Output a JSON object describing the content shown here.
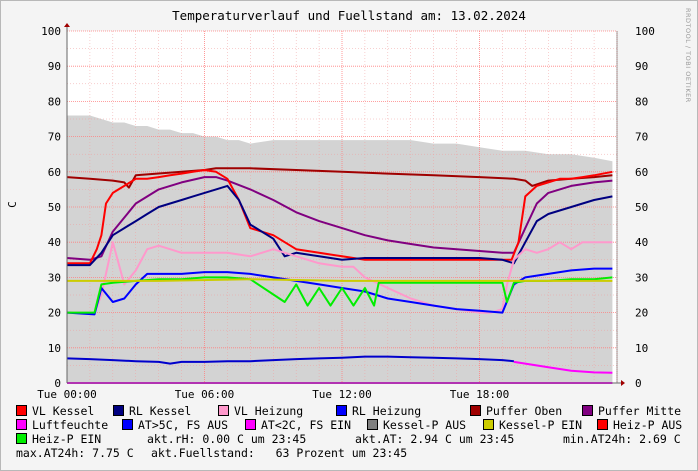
{
  "chart_data": {
    "type": "line",
    "title": "Temperaturverlauf und Fuellstand am: 13.02.2024",
    "watermark": "RRDTOOL / TOBI OETIKER",
    "ylabel": "C",
    "ylim": [
      0,
      100
    ],
    "y_ticks": [
      0,
      10,
      20,
      30,
      40,
      50,
      60,
      70,
      80,
      90,
      100
    ],
    "xlim_hours": [
      0,
      24
    ],
    "x_ticks": [
      {
        "hour": 0,
        "label": "Tue 00:00"
      },
      {
        "hour": 6,
        "label": "Tue 06:00"
      },
      {
        "hour": 12,
        "label": "Tue 12:00"
      },
      {
        "hour": 18,
        "label": "Tue 18:00"
      }
    ],
    "grid": true,
    "area": {
      "name": "Fuellstand",
      "color": "#d3d3d3",
      "x": [
        0,
        0.5,
        1.0,
        1.5,
        2.0,
        2.5,
        3.0,
        3.5,
        4.0,
        4.5,
        5.0,
        5.5,
        6.0,
        6.5,
        7.0,
        7.5,
        8.0,
        9.0,
        10.0,
        11.0,
        12.0,
        13.0,
        14.0,
        15.0,
        16.0,
        17.0,
        18.0,
        19.0,
        20.0,
        21.0,
        22.0,
        23.0,
        23.8
      ],
      "values": [
        76,
        76,
        76,
        75,
        74,
        74,
        73,
        73,
        72,
        72,
        71,
        71,
        70,
        70,
        69,
        69,
        68,
        69,
        69,
        69,
        69,
        69,
        69,
        69,
        68,
        68,
        67,
        66,
        66,
        65,
        65,
        64,
        63
      ]
    },
    "series": [
      {
        "name": "Puffer Oben",
        "color": "#a00000",
        "width": 2,
        "x": [
          0,
          1.0,
          2.0,
          2.5,
          2.7,
          3.0,
          5.0,
          6.0,
          6.5,
          8.0,
          10.0,
          12.0,
          14.0,
          16.0,
          18.0,
          19.5,
          20.0,
          20.3,
          21.0,
          22.0,
          23.0,
          23.8
        ],
        "values": [
          58.5,
          58,
          57.5,
          57,
          55.5,
          59,
          60,
          60.5,
          61,
          61,
          60.5,
          60,
          59.5,
          59,
          58.5,
          58,
          57.5,
          56,
          57.5,
          58,
          58.5,
          59
        ]
      },
      {
        "name": "Puffer Mitte",
        "color": "#800080",
        "width": 2,
        "x": [
          0,
          1.0,
          1.5,
          2.0,
          3.0,
          4.0,
          5.0,
          6.0,
          6.5,
          7.0,
          8.0,
          9.0,
          10.0,
          11.0,
          12.0,
          13.0,
          14.0,
          15.0,
          16.0,
          17.0,
          18.0,
          19.0,
          19.5,
          20.0,
          20.5,
          21.0,
          22.0,
          23.0,
          23.8
        ],
        "values": [
          35.5,
          35,
          36,
          43,
          51,
          55,
          57,
          58.5,
          58.5,
          57.5,
          55,
          52,
          48.5,
          46,
          44,
          42,
          40.5,
          39.5,
          38.5,
          38,
          37.5,
          37,
          37,
          44,
          51,
          54,
          56,
          57,
          57.5
        ]
      },
      {
        "name": "VL Kessel",
        "color": "#ff0000",
        "width": 2,
        "x": [
          0,
          1.0,
          1.3,
          1.5,
          1.7,
          2.0,
          2.5,
          3.0,
          3.5,
          4.0,
          4.5,
          5.0,
          5.5,
          6.0,
          6.5,
          7.0,
          7.5,
          8.0,
          9.0,
          10.0,
          11.0,
          12.0,
          13.0,
          14.0,
          15.0,
          16.0,
          17.0,
          18.0,
          19.0,
          19.4,
          19.7,
          20.0,
          20.5,
          21.0,
          21.5,
          22.0,
          22.5,
          23.0,
          23.8
        ],
        "values": [
          34,
          34,
          38,
          42,
          51,
          54,
          56,
          58,
          58,
          58.5,
          59,
          59.5,
          60,
          60.5,
          60,
          58,
          52,
          44,
          42,
          38,
          37,
          36,
          35,
          35,
          35,
          35,
          35,
          35,
          35,
          35,
          40,
          53,
          56,
          57,
          58,
          58,
          58.5,
          59,
          60
        ]
      },
      {
        "name": "RL Kessel",
        "color": "#000080",
        "width": 2,
        "x": [
          0,
          1.0,
          1.5,
          2.0,
          2.5,
          3.0,
          3.5,
          4.0,
          4.5,
          5.0,
          5.5,
          6.0,
          6.5,
          7.0,
          7.5,
          8.0,
          8.5,
          9.0,
          9.5,
          10.0,
          11.0,
          12.0,
          13.0,
          14.0,
          15.0,
          16.0,
          17.0,
          18.0,
          19.0,
          19.5,
          20.0,
          20.5,
          21.0,
          21.5,
          22.0,
          22.5,
          23.0,
          23.8
        ],
        "values": [
          33.5,
          33.5,
          37,
          42,
          44,
          46,
          48,
          50,
          51,
          52,
          53,
          54,
          55,
          56,
          52,
          45,
          43,
          41,
          36,
          37,
          36,
          35,
          35.5,
          35.5,
          35.5,
          35.5,
          35.5,
          35.5,
          35,
          34,
          40,
          46,
          48,
          49,
          50,
          51,
          52,
          53
        ]
      },
      {
        "name": "VL Heizung",
        "color": "#ff99cc",
        "width": 2,
        "x": [
          0,
          1.2,
          1.5,
          2.0,
          2.5,
          3.0,
          3.5,
          4.0,
          4.5,
          5.0,
          6.0,
          7.0,
          8.0,
          8.5,
          9.0,
          10.0,
          11.0,
          12.0,
          12.5,
          13.0,
          14.0,
          15.0,
          16.0,
          17.0,
          18.0,
          18.5,
          19.0,
          19.2,
          19.5,
          20.0,
          20.5,
          21.0,
          21.5,
          22.0,
          22.5,
          23.0,
          23.8
        ],
        "values": [
          20,
          20,
          25,
          40,
          28,
          32,
          38,
          39,
          38,
          37,
          37,
          37,
          36,
          37,
          38,
          36,
          34,
          33,
          33,
          30,
          27,
          24,
          22,
          21,
          20,
          20,
          21,
          28,
          35,
          38,
          37,
          38,
          40,
          38,
          40,
          40,
          40
        ]
      },
      {
        "name": "RL Heizung",
        "color": "#0000ff",
        "width": 2,
        "x": [
          0,
          1.2,
          1.5,
          2.0,
          2.5,
          3.0,
          3.5,
          4.0,
          5.0,
          6.0,
          7.0,
          8.0,
          9.0,
          10.0,
          11.0,
          12.0,
          13.0,
          14.0,
          15.0,
          16.0,
          17.0,
          18.0,
          19.0,
          19.5,
          20.0,
          21.0,
          22.0,
          23.0,
          23.8
        ],
        "values": [
          20,
          19.5,
          27,
          23,
          24,
          28,
          31,
          31,
          31,
          31.5,
          31.5,
          31,
          30,
          29,
          28,
          27,
          26,
          24,
          23,
          22,
          21,
          20.5,
          20,
          28,
          30,
          31,
          32,
          32.5,
          32.5
        ]
      },
      {
        "name": "Heiz-P EIN",
        "color": "#00ee00",
        "width": 2,
        "x": [
          0,
          1.2,
          1.5,
          2.0,
          3.0,
          4.0,
          5.0,
          6.0,
          7.0,
          8.0,
          9.5,
          10.0,
          10.5,
          11.0,
          11.5,
          12.0,
          12.5,
          13.0,
          13.4,
          13.6,
          14.0,
          16.0,
          18.0,
          19.0,
          19.2,
          19.5,
          20.0,
          21.0,
          22.0,
          23.0,
          23.8
        ],
        "values": [
          20,
          20,
          28,
          28.5,
          29,
          29.5,
          29.5,
          30,
          30,
          29.5,
          23,
          28,
          22,
          27,
          22,
          27,
          22,
          27,
          22,
          28.5,
          28.5,
          28.5,
          28.5,
          28.5,
          23,
          28.5,
          29,
          29,
          29.5,
          29.5,
          30
        ]
      },
      {
        "name": "Kessel-P EIN",
        "color": "#cccc00",
        "width": 2,
        "x": [
          0,
          4.0,
          8.0,
          12.0,
          16.0,
          20.0,
          23.8
        ],
        "values": [
          29,
          29,
          29.5,
          29,
          29,
          29,
          29
        ]
      },
      {
        "name": "Luftfeuchte",
        "color": "#ff00ff",
        "width": 2,
        "x": [
          0,
          23.8
        ],
        "values": [
          0,
          0
        ]
      },
      {
        "name": "AT>5C, FS AUS",
        "color": "#0000cc",
        "width": 2,
        "x": [
          0,
          1.0,
          2.0,
          3.0,
          4.0,
          4.5,
          5.0,
          6.0,
          7.0,
          8.0,
          9.0,
          10.0,
          11.0,
          12.0,
          13.0,
          14.0,
          15.0,
          16.0,
          17.0,
          18.0,
          19.0,
          19.5
        ],
        "values": [
          7,
          6.8,
          6.5,
          6.2,
          6.0,
          5.5,
          6.0,
          6.0,
          6.2,
          6.2,
          6.5,
          6.8,
          7.0,
          7.2,
          7.5,
          7.5,
          7.3,
          7.2,
          7.0,
          6.8,
          6.5,
          6.2
        ]
      },
      {
        "name": "AT<2C, FS EIN",
        "color": "#ff00ff",
        "width": 2,
        "x": [
          19.5,
          20.0,
          21.0,
          22.0,
          23.0,
          23.8
        ],
        "values": [
          6.0,
          5.5,
          4.5,
          3.5,
          3.0,
          2.9
        ]
      }
    ],
    "legend": [
      {
        "label": "VL Kessel",
        "color": "#ff0000"
      },
      {
        "label": "RL Kessel",
        "color": "#000080"
      },
      {
        "label": "VL Heizung",
        "color": "#ff99cc"
      },
      {
        "label": "RL Heizung",
        "color": "#0000ff"
      },
      {
        "label": "Puffer Oben",
        "color": "#a00000"
      },
      {
        "label": "Puffer Mitte",
        "color": "#800080"
      },
      {
        "label": "Luftfeuchte",
        "color": "#ff00ff"
      },
      {
        "label": "AT>5C, FS AUS",
        "color": "#0000ff"
      },
      {
        "label": "AT<2C, FS EIN",
        "color": "#ff00ff"
      },
      {
        "label": "Kessel-P AUS",
        "color": "#808080"
      },
      {
        "label": "Kessel-P EIN",
        "color": "#cccc00"
      },
      {
        "label": "Heiz-P AUS",
        "color": "#ff0000"
      },
      {
        "label": "Heiz-P EIN",
        "color": "#00ee00"
      }
    ],
    "info": {
      "rh": "akt.rH: 0.00 C um 23:45",
      "at": "akt.AT: 2.94 C um 23:45",
      "min_at": "min.AT24h: 2.69 C",
      "max_at": "max.AT24h: 7.75 C",
      "fuellstand": "akt.Fuellstand:   63 Prozent um 23:45"
    }
  }
}
